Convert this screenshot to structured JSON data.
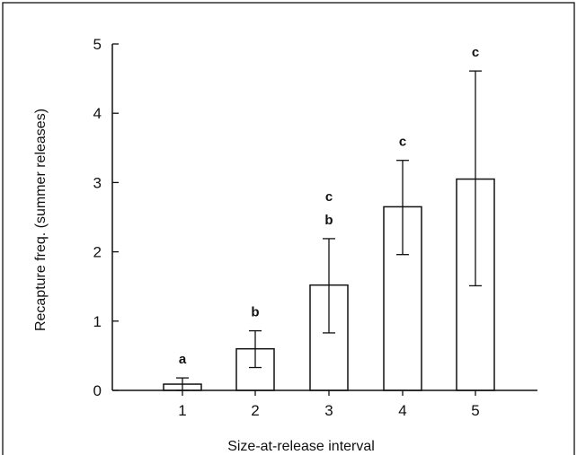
{
  "chart_data": {
    "type": "bar",
    "title": "",
    "xlabel": "Size-at-release interval",
    "ylabel": "Recapture  freq. (summer releases)",
    "categories": [
      "1",
      "2",
      "3",
      "4",
      "5"
    ],
    "values": [
      0.09,
      0.6,
      1.52,
      2.65,
      3.05
    ],
    "error_low": [
      0.0,
      0.33,
      0.83,
      1.96,
      1.51
    ],
    "error_high": [
      0.18,
      0.86,
      2.19,
      3.32,
      4.61
    ],
    "annotations": [
      [
        "a"
      ],
      [
        "b"
      ],
      [
        "b",
        "c"
      ],
      [
        "c"
      ],
      [
        "c"
      ]
    ],
    "ylim": [
      0,
      5
    ],
    "yticks": [
      "0",
      "1",
      "2",
      "3",
      "4",
      "5"
    ],
    "grid": false,
    "colors": {
      "bar_fill": "#ffffff",
      "stroke": "#111111"
    }
  }
}
